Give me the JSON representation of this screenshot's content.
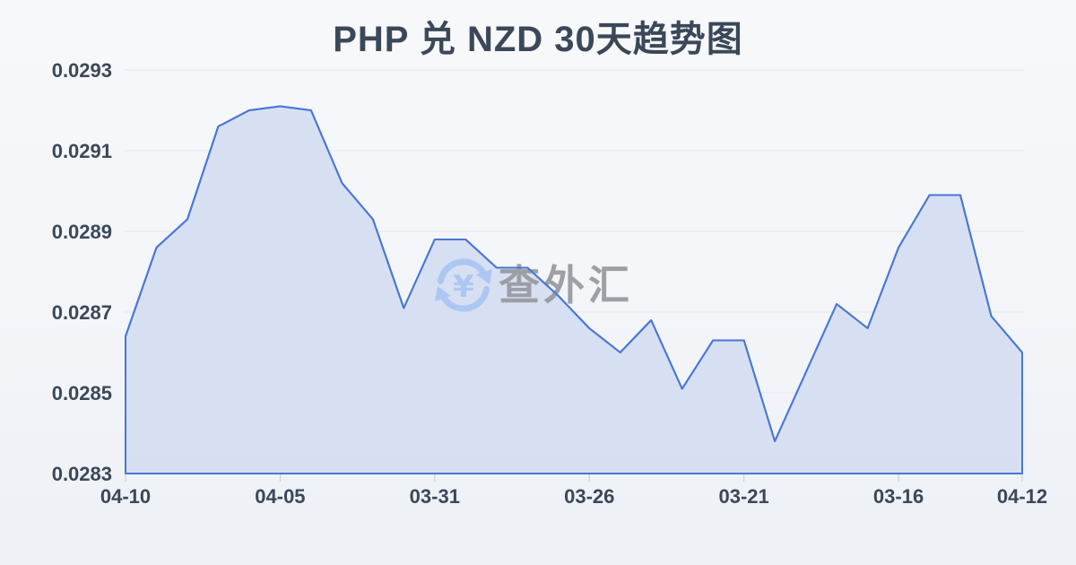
{
  "page": {
    "background_top": "#f7f8fa",
    "background_bottom": "#edf0f5"
  },
  "watermark": {
    "icon": "currency-exchange-icon",
    "currency_symbol": "¥",
    "text": "查外汇",
    "icon_color": "#a9c6f1",
    "text_color": "#97999e"
  },
  "chart_data": {
    "type": "area",
    "title": "PHP 兑 NZD 30天趋势图",
    "title_color": "#3b4859",
    "xlabel": "",
    "ylabel": "",
    "ylim": [
      0.0283,
      0.0293
    ],
    "grid": true,
    "grid_color": "#e3e7ed",
    "tick_color": "#c6ccd6",
    "axis_label_color": "#3b4859",
    "line_color": "#4a77d2",
    "fill_color": "#d3dcf1",
    "fill_opacity": 0.88,
    "y_ticks": [
      "0.0293",
      "0.0291",
      "0.0289",
      "0.0287",
      "0.0285",
      "0.0283"
    ],
    "x_ticks": [
      {
        "label": "04-10",
        "index": 0
      },
      {
        "label": "04-05",
        "index": 5
      },
      {
        "label": "03-31",
        "index": 10
      },
      {
        "label": "03-26",
        "index": 15
      },
      {
        "label": "03-21",
        "index": 20
      },
      {
        "label": "03-16",
        "index": 25
      },
      {
        "label": "04-12",
        "index": 29
      }
    ],
    "values": [
      0.02864,
      0.02886,
      0.02893,
      0.02916,
      0.0292,
      0.02921,
      0.0292,
      0.02902,
      0.02893,
      0.02871,
      0.02888,
      0.02888,
      0.02881,
      0.02881,
      0.02874,
      0.02866,
      0.0286,
      0.02868,
      0.02851,
      0.02863,
      0.02863,
      0.02838,
      0.02855,
      0.02872,
      0.02866,
      0.02886,
      0.02899,
      0.02899,
      0.02869,
      0.0286
    ]
  }
}
